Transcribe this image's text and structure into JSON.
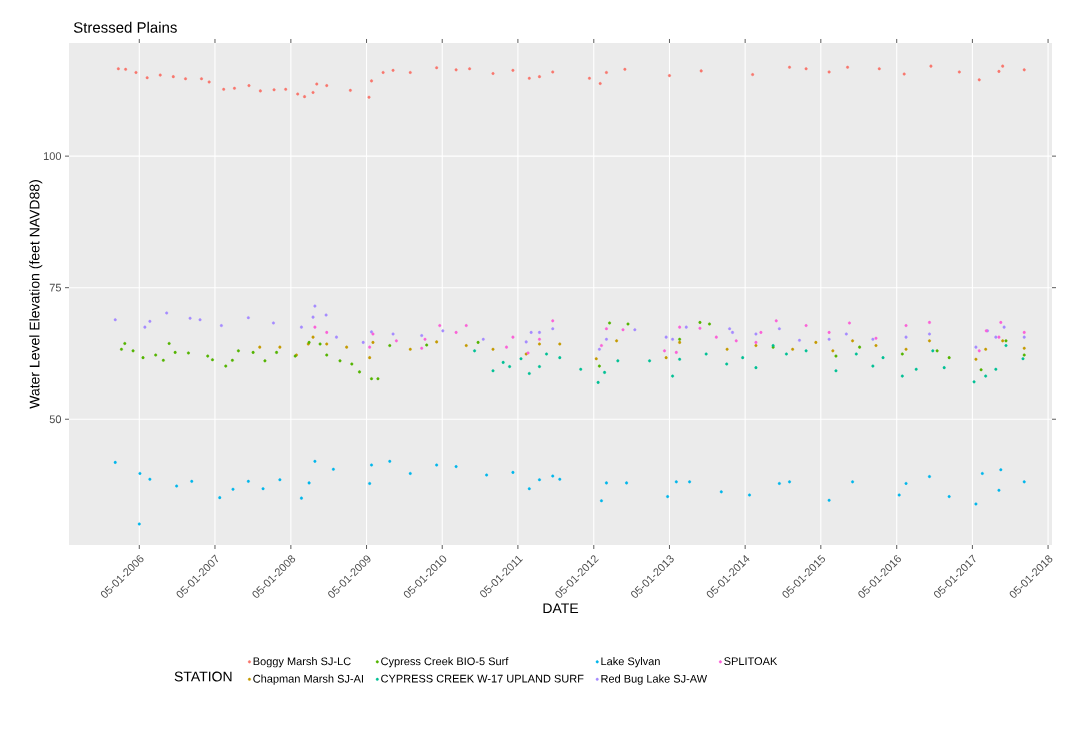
{
  "chart_data": {
    "type": "scatter",
    "title": "Stressed Plains",
    "xlabel": "DATE",
    "ylabel": "Water Level Elevation  (feet NAVD88)",
    "legend_title": "STATION",
    "xlim": [
      "2005-05-27",
      "2018-05-20"
    ],
    "ylim": [
      26.1,
      121.5
    ],
    "xticks": [
      {
        "value": "2006-05-01",
        "label": "05-01-2006"
      },
      {
        "value": "2007-05-01",
        "label": "05-01-2007"
      },
      {
        "value": "2008-05-01",
        "label": "05-01-2008"
      },
      {
        "value": "2009-05-01",
        "label": "05-01-2009"
      },
      {
        "value": "2010-05-01",
        "label": "05-01-2010"
      },
      {
        "value": "2011-05-01",
        "label": "05-01-2011"
      },
      {
        "value": "2012-05-01",
        "label": "05-01-2012"
      },
      {
        "value": "2013-05-01",
        "label": "05-01-2013"
      },
      {
        "value": "2014-05-01",
        "label": "05-01-2014"
      },
      {
        "value": "2015-05-01",
        "label": "05-01-2015"
      },
      {
        "value": "2016-05-01",
        "label": "05-01-2016"
      },
      {
        "value": "2017-05-01",
        "label": "05-01-2017"
      },
      {
        "value": "2018-05-01",
        "label": "05-01-2018"
      }
    ],
    "yticks": [
      50,
      75,
      100
    ],
    "grid": true,
    "legend": "bottom",
    "marker": "circle",
    "series": [
      {
        "name": "Boggy Marsh SJ-LC",
        "color": "#f8766d",
        "x": [
          "2006-01-20",
          "2006-02-24",
          "2006-04-15",
          "2006-06-08",
          "2006-08-10",
          "2006-10-12",
          "2006-12-10",
          "2007-02-25",
          "2007-04-03",
          "2007-06-12",
          "2007-08-03",
          "2007-10-12",
          "2007-12-06",
          "2008-02-10",
          "2008-04-06",
          "2008-06-03",
          "2008-07-06",
          "2008-08-16",
          "2008-09-03",
          "2008-10-21",
          "2009-02-12",
          "2009-05-13",
          "2009-05-25",
          "2009-07-20",
          "2009-09-06",
          "2009-11-28",
          "2010-04-04",
          "2010-07-07",
          "2010-09-10",
          "2011-01-01",
          "2011-04-07",
          "2011-06-25",
          "2011-08-13",
          "2011-10-16",
          "2012-04-10",
          "2012-06-01",
          "2012-07-01",
          "2012-09-28",
          "2013-05-01",
          "2013-10-01",
          "2014-06-06",
          "2014-12-01",
          "2015-02-19",
          "2015-06-10",
          "2015-09-07",
          "2016-02-07",
          "2016-06-06",
          "2016-10-13",
          "2017-02-27",
          "2017-06-03",
          "2017-09-06",
          "2017-09-24",
          "2018-01-06"
        ],
        "values": [
          116.6,
          116.5,
          115.9,
          114.9,
          115.4,
          115.1,
          114.7,
          114.7,
          114.1,
          112.7,
          112.9,
          113.4,
          112.4,
          112.6,
          112.7,
          111.8,
          111.3,
          112.1,
          113.7,
          113.4,
          112.5,
          111.2,
          114.3,
          115.9,
          116.3,
          115.9,
          116.8,
          116.4,
          116.6,
          115.7,
          116.3,
          114.8,
          115.1,
          116.0,
          114.8,
          113.8,
          115.9,
          116.5,
          115.3,
          116.2,
          115.5,
          116.9,
          116.6,
          116.0,
          116.9,
          116.6,
          115.6,
          117.1,
          116.0,
          114.5,
          116.1,
          117.1,
          116.4
        ]
      },
      {
        "name": "Chapman Marsh SJ-AI",
        "color": "#c49a00",
        "x": [
          "2007-12-03",
          "2008-03-09",
          "2008-05-28",
          "2008-07-24",
          "2008-08-16",
          "2008-10-21",
          "2009-01-25",
          "2009-05-16",
          "2009-06-01",
          "2009-11-28",
          "2010-04-04",
          "2010-08-25",
          "2011-01-01",
          "2011-06-10",
          "2011-08-13",
          "2011-11-19",
          "2012-05-13",
          "2012-08-19",
          "2013-04-15",
          "2013-06-19",
          "2014-02-03",
          "2014-06-22",
          "2014-12-16",
          "2015-04-07",
          "2015-06-28",
          "2015-10-01",
          "2016-01-22",
          "2016-06-15",
          "2016-10-06",
          "2017-05-18",
          "2017-07-04",
          "2017-09-24",
          "2018-01-06"
        ],
        "values": [
          63.7,
          63.7,
          62.2,
          64.3,
          65.6,
          64.3,
          63.7,
          61.7,
          64.6,
          63.3,
          64.7,
          64.0,
          63.3,
          62.4,
          64.3,
          64.3,
          61.5,
          64.9,
          61.7,
          64.6,
          63.3,
          64.0,
          63.3,
          64.6,
          63.0,
          64.9,
          64.0,
          63.3,
          64.9,
          61.4,
          63.3,
          64.9,
          63.5
        ]
      },
      {
        "name": "Cypress Creek BIO-5 Surf",
        "color": "#53b400",
        "x": [
          "2006-02-04",
          "2006-02-20",
          "2006-04-01",
          "2006-05-19",
          "2006-07-19",
          "2006-08-25",
          "2006-09-22",
          "2006-10-21",
          "2006-12-24",
          "2007-03-27",
          "2007-04-19",
          "2007-06-22",
          "2007-07-24",
          "2007-08-22",
          "2007-11-01",
          "2007-12-28",
          "2008-02-22",
          "2008-05-22",
          "2008-07-28",
          "2008-09-19",
          "2008-10-21",
          "2008-12-24",
          "2009-02-19",
          "2009-03-28",
          "2009-05-25",
          "2009-06-25",
          "2009-08-21",
          "2010-02-15",
          "2010-10-21",
          "2012-05-28",
          "2012-07-16",
          "2012-10-13",
          "2013-06-19",
          "2013-09-25",
          "2013-11-10",
          "2014-09-13",
          "2015-07-13",
          "2015-11-04",
          "2016-05-28",
          "2016-11-12",
          "2017-01-09",
          "2017-06-12",
          "2017-10-10",
          "2018-01-06"
        ],
        "values": [
          63.3,
          64.4,
          63.0,
          61.7,
          62.2,
          61.2,
          64.4,
          62.7,
          62.6,
          62.0,
          61.3,
          60.1,
          61.2,
          63.0,
          62.7,
          61.1,
          62.7,
          62.0,
          64.6,
          64.3,
          62.2,
          61.1,
          60.5,
          59.0,
          57.7,
          57.7,
          64.0,
          64.1,
          64.6,
          60.1,
          68.3,
          68.1,
          65.2,
          68.4,
          68.1,
          63.7,
          62.0,
          63.7,
          62.4,
          63.0,
          61.7,
          59.4,
          64.9,
          62.2
        ]
      },
      {
        "name": "CYPRESS CREEK W-17 UPLAND SURF",
        "color": "#00c094",
        "x": [
          "2010-10-04",
          "2011-01-01",
          "2011-02-19",
          "2011-03-22",
          "2011-05-16",
          "2011-06-25",
          "2011-08-13",
          "2011-09-16",
          "2011-11-19",
          "2012-02-28",
          "2012-05-22",
          "2012-06-22",
          "2012-08-25",
          "2013-01-25",
          "2013-05-16",
          "2013-06-19",
          "2013-10-25",
          "2014-02-01",
          "2014-04-19",
          "2014-06-22",
          "2014-09-13",
          "2014-11-16",
          "2015-02-19",
          "2015-07-13",
          "2015-10-19",
          "2016-01-07",
          "2016-02-25",
          "2016-05-28",
          "2016-08-03",
          "2016-10-22",
          "2016-12-16",
          "2017-05-09",
          "2017-07-04",
          "2017-08-22",
          "2017-10-10",
          "2017-12-31"
        ],
        "values": [
          63.0,
          59.2,
          60.8,
          60.0,
          61.5,
          58.7,
          60.0,
          62.4,
          61.7,
          59.5,
          57.0,
          58.9,
          61.1,
          61.1,
          58.2,
          61.4,
          62.4,
          60.5,
          61.7,
          59.8,
          64.0,
          62.4,
          63.0,
          59.2,
          62.4,
          60.1,
          61.7,
          58.2,
          59.5,
          63.0,
          59.8,
          57.1,
          58.2,
          59.5,
          64.0,
          61.5
        ]
      },
      {
        "name": "Lake Sylvan",
        "color": "#00b6eb",
        "x": [
          "2006-01-05",
          "2006-05-01",
          "2006-05-04",
          "2006-06-21",
          "2006-10-28",
          "2007-01-09",
          "2007-05-24",
          "2007-07-27",
          "2007-10-09",
          "2007-12-19",
          "2008-03-09",
          "2008-06-21",
          "2008-07-28",
          "2008-08-25",
          "2008-11-22",
          "2009-05-16",
          "2009-05-25",
          "2009-08-21",
          "2009-11-28",
          "2010-04-04",
          "2010-07-07",
          "2010-12-01",
          "2011-04-07",
          "2011-06-25",
          "2011-08-13",
          "2011-10-16",
          "2011-11-19",
          "2012-06-07",
          "2012-07-01",
          "2012-10-06",
          "2013-04-22",
          "2013-06-03",
          "2013-08-06",
          "2014-01-06",
          "2014-05-22",
          "2014-10-13",
          "2014-12-01",
          "2015-06-10",
          "2015-10-01",
          "2016-05-13",
          "2016-06-15",
          "2016-10-06",
          "2017-01-09",
          "2017-05-18",
          "2017-06-18",
          "2017-09-06",
          "2017-09-15",
          "2018-01-06"
        ],
        "values": [
          41.8,
          30.1,
          39.7,
          38.6,
          37.3,
          38.2,
          35.1,
          36.7,
          38.2,
          36.8,
          38.5,
          35.0,
          37.9,
          42.0,
          40.5,
          37.8,
          41.3,
          42.0,
          39.7,
          41.3,
          41.0,
          39.4,
          39.9,
          36.8,
          38.5,
          39.2,
          38.6,
          34.5,
          37.9,
          37.9,
          35.3,
          38.1,
          38.1,
          36.2,
          35.6,
          37.8,
          38.1,
          34.6,
          38.1,
          35.6,
          37.8,
          39.1,
          35.3,
          33.9,
          39.7,
          36.5,
          40.4,
          38.1
        ]
      },
      {
        "name": "Red Bug Lake SJ-AW",
        "color": "#a58aff",
        "x": [
          "2006-01-05",
          "2006-05-28",
          "2006-06-21",
          "2006-09-10",
          "2007-01-01",
          "2007-02-18",
          "2007-06-01",
          "2007-10-09",
          "2008-02-07",
          "2008-06-21",
          "2008-08-16",
          "2008-08-25",
          "2008-10-18",
          "2008-12-07",
          "2009-04-15",
          "2009-05-25",
          "2009-09-06",
          "2010-01-22",
          "2010-05-04",
          "2010-11-15",
          "2011-06-10",
          "2011-07-04",
          "2011-08-13",
          "2011-10-16",
          "2012-05-28",
          "2012-07-01",
          "2012-11-15",
          "2013-04-15",
          "2013-05-16",
          "2013-07-21",
          "2014-02-15",
          "2014-03-01",
          "2014-06-22",
          "2014-10-13",
          "2015-01-18",
          "2015-06-10",
          "2015-09-01",
          "2016-01-07",
          "2016-06-15",
          "2016-10-06",
          "2017-05-18",
          "2017-07-13",
          "2017-08-22",
          "2017-10-01",
          "2018-01-06"
        ],
        "values": [
          68.9,
          67.5,
          68.6,
          70.2,
          69.2,
          68.9,
          67.8,
          69.3,
          68.3,
          67.5,
          69.4,
          71.5,
          69.8,
          65.6,
          64.6,
          66.6,
          66.2,
          65.9,
          66.8,
          65.2,
          64.7,
          66.5,
          66.5,
          67.2,
          63.3,
          65.2,
          67.0,
          65.6,
          65.2,
          67.5,
          67.2,
          66.5,
          66.2,
          67.2,
          65.0,
          65.2,
          66.2,
          65.2,
          65.6,
          66.2,
          63.7,
          66.8,
          65.6,
          67.5,
          65.6
        ]
      },
      {
        "name": "SPLITOAK",
        "color": "#fb61d7",
        "x": [
          "2008-08-25",
          "2008-10-21",
          "2009-05-16",
          "2009-06-01",
          "2009-09-22",
          "2010-01-22",
          "2010-02-07",
          "2010-04-19",
          "2010-07-07",
          "2010-08-25",
          "2011-03-07",
          "2011-04-07",
          "2011-06-19",
          "2011-08-13",
          "2011-10-16",
          "2012-06-07",
          "2012-07-01",
          "2012-09-19",
          "2013-04-07",
          "2013-06-03",
          "2013-06-19",
          "2013-09-25",
          "2013-12-13",
          "2014-03-19",
          "2014-06-22",
          "2014-07-16",
          "2014-09-28",
          "2015-02-19",
          "2015-06-10",
          "2015-09-16",
          "2016-01-22",
          "2016-06-15",
          "2016-10-06",
          "2017-06-03",
          "2017-07-07",
          "2017-09-06",
          "2017-09-15",
          "2018-01-06"
        ],
        "values": [
          67.5,
          66.5,
          63.7,
          66.2,
          64.9,
          63.5,
          65.2,
          67.8,
          66.5,
          67.8,
          63.7,
          65.6,
          62.6,
          65.2,
          68.7,
          64.0,
          67.2,
          67.0,
          63.0,
          62.7,
          67.5,
          67.3,
          65.6,
          64.9,
          64.6,
          66.5,
          68.7,
          67.8,
          66.5,
          68.3,
          65.4,
          67.8,
          68.4,
          63.0,
          66.8,
          65.6,
          68.4,
          66.5
        ]
      }
    ]
  }
}
